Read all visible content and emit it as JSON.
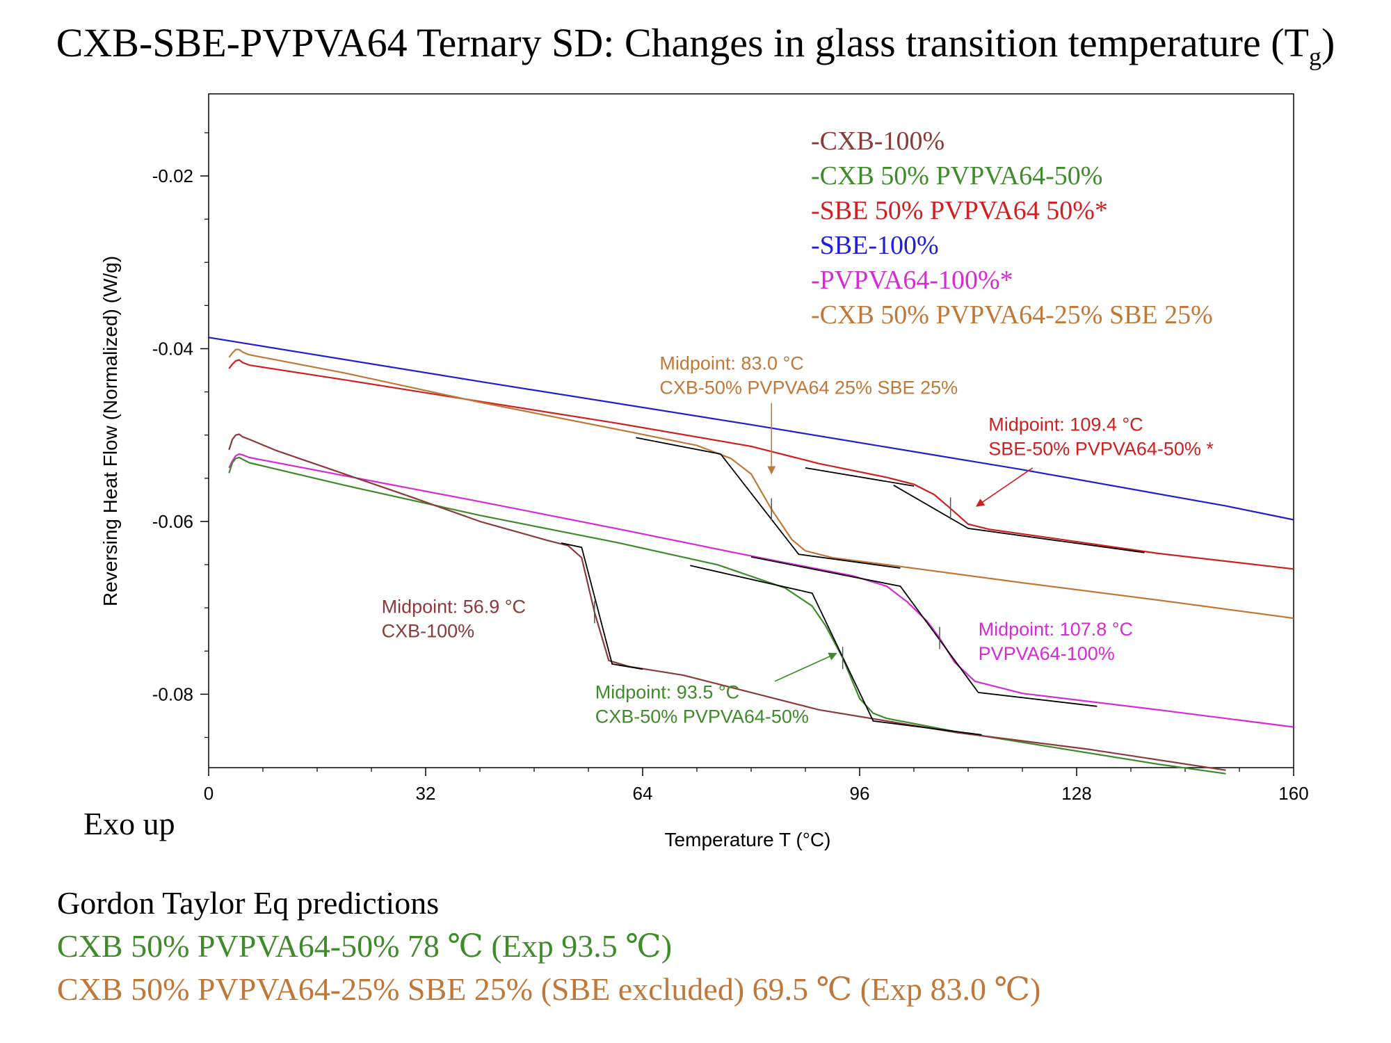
{
  "title": {
    "main": "CXB-SBE-PVPVA64 Ternary SD: Changes in glass transition temperature (T",
    "sub": "g",
    "close": ")"
  },
  "colors": {
    "cxb100": "#8b3a3a",
    "cxb_pvpva": "#3f8a2a",
    "sbe_pvpva": "#d11f1f",
    "sbe100": "#1e1ed6",
    "pvpva100": "#d62ad6",
    "ternary": "#c07838",
    "fit": "#000000"
  },
  "chart_data": {
    "type": "line",
    "title": "CXB-SBE-PVPVA64 Ternary SD: Changes in glass transition temperature (Tg)",
    "xlabel": "Temperature T (°C)",
    "ylabel": "Reversing Heat Flow (Normalized)  (W/g)",
    "xlim": [
      0,
      160
    ],
    "ylim": [
      -0.0885,
      -0.0105
    ],
    "xticks": [
      0,
      32,
      64,
      96,
      128,
      160
    ],
    "yticks": [
      -0.02,
      -0.04,
      -0.06,
      -0.08
    ],
    "xtick_labels": [
      "0",
      "32",
      "64",
      "96",
      "128",
      "160"
    ],
    "ytick_labels": [
      "-0.02",
      "-0.04",
      "-0.06",
      "-0.08"
    ],
    "grid": false,
    "legend_position": "top-right",
    "legend": [
      {
        "label": "-CXB-100%",
        "color_key": "cxb100"
      },
      {
        "label": "-CXB 50% PVPVA64-50%",
        "color_key": "cxb_pvpva"
      },
      {
        "label": "-SBE 50% PVPVA64 50%*",
        "color_key": "sbe_pvpva"
      },
      {
        "label": "-SBE-100%",
        "color_key": "sbe100"
      },
      {
        "label": "-PVPVA64-100%*",
        "color_key": "pvpva100"
      },
      {
        "label": "-CXB 50% PVPVA64-25% SBE 25%",
        "color_key": "ternary"
      }
    ],
    "series": [
      {
        "key": "sbe100",
        "color_key": "sbe100",
        "x": [
          0,
          40,
          80,
          120,
          150,
          160
        ],
        "y": [
          -0.0387,
          -0.0438,
          -0.0488,
          -0.054,
          -0.0582,
          -0.0598
        ]
      },
      {
        "key": "sbe_pvpva",
        "color_key": "sbe_pvpva",
        "x": [
          3,
          3.5,
          4,
          4.5,
          5,
          6,
          20,
          40,
          60,
          80,
          90,
          100,
          104,
          107,
          109.4,
          112,
          115,
          125,
          140,
          160
        ],
        "y": [
          -0.0423,
          -0.0418,
          -0.0414,
          -0.0413,
          -0.0416,
          -0.0419,
          -0.0436,
          -0.0461,
          -0.0486,
          -0.0513,
          -0.0533,
          -0.0549,
          -0.0557,
          -0.0569,
          -0.0585,
          -0.0603,
          -0.0609,
          -0.062,
          -0.0637,
          -0.0655
        ]
      },
      {
        "key": "ternary",
        "color_key": "ternary",
        "x": [
          3,
          3.5,
          4,
          4.5,
          5,
          6,
          20,
          40,
          60,
          72,
          77,
          80,
          83,
          86,
          88,
          92,
          100,
          120,
          140,
          160
        ],
        "y": [
          -0.041,
          -0.0405,
          -0.0401,
          -0.0401,
          -0.0404,
          -0.0407,
          -0.0428,
          -0.0462,
          -0.0493,
          -0.0512,
          -0.0527,
          -0.0545,
          -0.0586,
          -0.0621,
          -0.0634,
          -0.0642,
          -0.065,
          -0.0671,
          -0.0691,
          -0.0712
        ]
      },
      {
        "key": "pvpva100",
        "color_key": "pvpva100",
        "x": [
          3,
          3.5,
          4,
          4.5,
          5,
          6,
          20,
          40,
          60,
          80,
          95,
          100,
          103,
          106,
          107.8,
          110,
          113,
          120,
          140,
          160
        ],
        "y": [
          -0.0538,
          -0.053,
          -0.0524,
          -0.0522,
          -0.0523,
          -0.0526,
          -0.0547,
          -0.0577,
          -0.0608,
          -0.064,
          -0.0663,
          -0.0675,
          -0.0693,
          -0.0716,
          -0.0735,
          -0.0763,
          -0.0785,
          -0.0799,
          -0.0818,
          -0.0838
        ]
      },
      {
        "key": "cxb_pvpva",
        "color_key": "cxb_pvpva",
        "x": [
          3,
          3.5,
          4,
          4.5,
          5,
          6,
          20,
          40,
          60,
          75,
          85,
          89,
          91,
          93.5,
          96,
          98,
          100,
          110,
          125,
          140,
          150
        ],
        "y": [
          -0.0544,
          -0.0532,
          -0.0527,
          -0.0526,
          -0.0528,
          -0.0532,
          -0.0558,
          -0.0593,
          -0.0624,
          -0.065,
          -0.0677,
          -0.0698,
          -0.0721,
          -0.0758,
          -0.0805,
          -0.0822,
          -0.0828,
          -0.0843,
          -0.0862,
          -0.0881,
          -0.0892
        ]
      },
      {
        "key": "cxb100",
        "color_key": "cxb100",
        "x": [
          3,
          3.5,
          4,
          4.5,
          5,
          6,
          10,
          20,
          30,
          40,
          50,
          53,
          55,
          56.9,
          59,
          62,
          70,
          90,
          110,
          130,
          150
        ],
        "y": [
          -0.0517,
          -0.0505,
          -0.05,
          -0.0499,
          -0.0502,
          -0.0505,
          -0.0518,
          -0.0545,
          -0.0572,
          -0.06,
          -0.0622,
          -0.0628,
          -0.0642,
          -0.0705,
          -0.0761,
          -0.0768,
          -0.0778,
          -0.0818,
          -0.0844,
          -0.0864,
          -0.0888
        ]
      }
    ],
    "fits": [
      {
        "for": "sbe_pvpva",
        "x": [
          101,
          112,
          138
        ],
        "y": [
          -0.0558,
          -0.0608,
          -0.0636
        ]
      },
      {
        "for": "sbe_pvpva",
        "x": [
          88,
          104
        ],
        "y": [
          -0.0538,
          -0.0559
        ]
      },
      {
        "for": "ternary",
        "x": [
          63,
          75.5,
          87,
          102
        ],
        "y": [
          -0.0503,
          -0.0522,
          -0.0638,
          -0.0654
        ]
      },
      {
        "for": "cxb100",
        "x": [
          52,
          55,
          59.5,
          64
        ],
        "y": [
          -0.0625,
          -0.063,
          -0.0765,
          -0.0771
        ]
      },
      {
        "for": "cxb_pvpva",
        "x": [
          71,
          89,
          98,
          114
        ],
        "y": [
          -0.0651,
          -0.0683,
          -0.0831,
          -0.0847
        ]
      },
      {
        "for": "pvpva100",
        "x": [
          80,
          102,
          113.5,
          131
        ],
        "y": [
          -0.0641,
          -0.0675,
          -0.0798,
          -0.0814
        ]
      }
    ],
    "tick_marks": [
      {
        "x": 56.9,
        "y": -0.0705
      },
      {
        "x": 83.0,
        "y": -0.0586
      },
      {
        "x": 93.5,
        "y": -0.0758
      },
      {
        "x": 107.8,
        "y": -0.0735
      },
      {
        "x": 109.4,
        "y": -0.0585
      }
    ],
    "annotations": [
      {
        "key": "ann_ternary",
        "color_key": "ternary",
        "lines": [
          "Midpoint: 83.0 °C",
          "CXB-50% PVPVA64 25% SBE 25%"
        ],
        "text_x": 66.5,
        "text_y": -0.0424,
        "arrow_from": [
          83.0,
          -0.0463
        ],
        "arrow_to": [
          83.0,
          -0.0544
        ]
      },
      {
        "key": "ann_sbe_pvpva",
        "color_key": "sbe_pvpva",
        "lines": [
          "Midpoint: 109.4 °C",
          "SBE-50% PVPVA64-50% *"
        ],
        "text_x": 115,
        "text_y": -0.0495,
        "arrow_from": [
          121.5,
          -0.0538
        ],
        "arrow_to": [
          113.3,
          -0.0582
        ]
      },
      {
        "key": "ann_cxb100",
        "color_key": "cxb100",
        "lines": [
          "Midpoint: 56.9 °C",
          "CXB-100%"
        ],
        "text_x": 25.5,
        "text_y": -0.0706
      },
      {
        "key": "ann_cxb_pvpva",
        "color_key": "cxb_pvpva",
        "lines": [
          "Midpoint: 93.5 °C",
          "CXB-50% PVPVA64-50%"
        ],
        "text_x": 57,
        "text_y": -0.0805,
        "arrow_from": [
          83.5,
          -0.0785
        ],
        "arrow_to": [
          92.5,
          -0.0753
        ]
      },
      {
        "key": "ann_pvpva100",
        "color_key": "pvpva100",
        "lines": [
          "Midpoint: 107.8 °C",
          "PVPVA64-100%"
        ],
        "text_x": 113.5,
        "text_y": -0.0732
      }
    ]
  },
  "notes": {
    "exo": "Exo up",
    "gordon_taylor": {
      "heading": "Gordon Taylor Eq predictions",
      "line1": "CXB 50% PVPVA64-50% 78 ℃ (Exp 93.5 ℃)",
      "line2": "CXB 50% PVPVA64-25% SBE 25% (SBE excluded) 69.5 ℃ (Exp 83.0 ℃)"
    }
  }
}
